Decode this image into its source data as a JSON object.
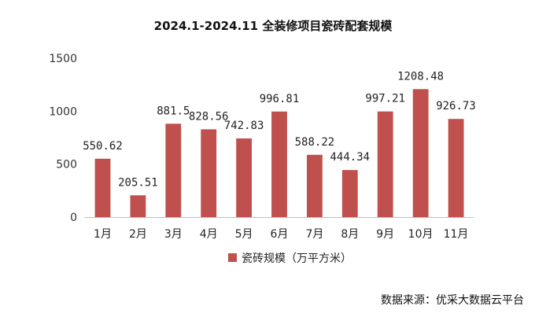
{
  "chart_data": {
    "type": "bar",
    "title": "2024.1-2024.11 全装修项目瓷砖配套规模",
    "categories": [
      "1月",
      "2月",
      "3月",
      "4月",
      "5月",
      "6月",
      "7月",
      "8月",
      "9月",
      "10月",
      "11月"
    ],
    "series": [
      {
        "name": "瓷砖规模（万平方米）",
        "values": [
          550.62,
          205.51,
          881.5,
          828.56,
          742.83,
          996.81,
          588.22,
          444.34,
          997.21,
          1208.48,
          926.73
        ],
        "labels": [
          "550.62",
          "205.51",
          "881.5",
          "828.56",
          "742.83",
          "996.81",
          "588.22",
          "444.34",
          "997.21",
          "1208.48",
          "926.73"
        ],
        "color": "#c0504d"
      }
    ],
    "ylim": [
      0,
      1500
    ],
    "yticks": [
      "0",
      "500",
      "1000",
      "1500"
    ],
    "grid": false,
    "legend": "bottom"
  },
  "source_note": "数据来源：优采大数据云平台"
}
